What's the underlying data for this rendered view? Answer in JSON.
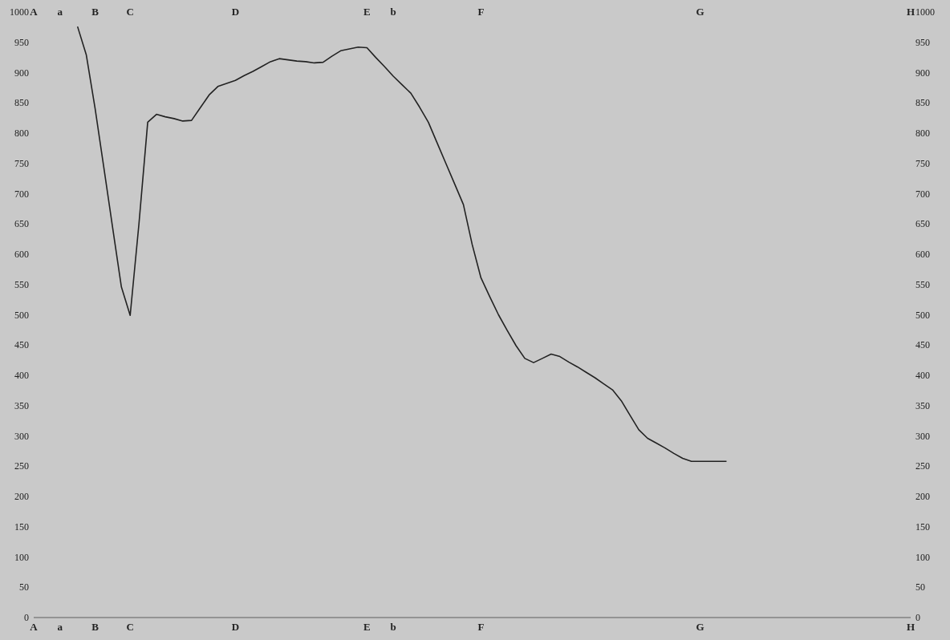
{
  "chart_data": {
    "type": "line",
    "ylim": [
      0,
      1000
    ],
    "y2lim": [
      0,
      1000
    ],
    "categories": [
      "A",
      null,
      null,
      "a",
      null,
      null,
      null,
      "B",
      null,
      null,
      null,
      "C",
      null,
      null,
      null,
      null,
      null,
      null,
      null,
      null,
      null,
      null,
      null,
      "D",
      null,
      null,
      null,
      null,
      null,
      null,
      null,
      null,
      null,
      null,
      null,
      null,
      null,
      null,
      "E",
      null,
      null,
      "b",
      null,
      null,
      null,
      null,
      null,
      null,
      null,
      null,
      null,
      "F",
      null,
      null,
      null,
      null,
      null,
      null,
      null,
      null,
      null,
      null,
      null,
      null,
      null,
      null,
      null,
      null,
      null,
      null,
      null,
      null,
      null,
      null,
      null,
      null,
      "G",
      null,
      null,
      null,
      null,
      null,
      null,
      null,
      null,
      null,
      null,
      null,
      null,
      null,
      null,
      null,
      null,
      null,
      null,
      null,
      null,
      null,
      null,
      null,
      "H"
    ],
    "yticks": [
      0,
      50,
      100,
      150,
      200,
      250,
      300,
      350,
      400,
      450,
      500,
      550,
      600,
      650,
      700,
      750,
      800,
      850,
      900,
      950,
      1000
    ],
    "y2ticks": [
      0,
      50,
      100,
      150,
      200,
      250,
      300,
      350,
      400,
      450,
      500,
      550,
      600,
      650,
      700,
      750,
      800,
      850,
      900,
      950,
      1000
    ],
    "grid": false,
    "marker": "none",
    "line_style": "solid",
    "series": [
      {
        "color": "#222222",
        "values": [
          null,
          null,
          null,
          null,
          null,
          976,
          929,
          841,
          743,
          644,
          546,
          499,
          650,
          818,
          831,
          827,
          824,
          820,
          821,
          842,
          863,
          877,
          882,
          887,
          895,
          902,
          910,
          918,
          923,
          921,
          919,
          918,
          916,
          917,
          927,
          936,
          939,
          942,
          941,
          925,
          910,
          894,
          880,
          866,
          843,
          818,
          784,
          750,
          716,
          682,
          616,
          561,
          530,
          500,
          474,
          449,
          428,
          421,
          428,
          435,
          431,
          422,
          414,
          405,
          396,
          386,
          376,
          358,
          334,
          310,
          296,
          288,
          280,
          271,
          263,
          258,
          258,
          258,
          258,
          258,
          null,
          null,
          null,
          null,
          null,
          null,
          null,
          null,
          null,
          null,
          null,
          null,
          null,
          null,
          null,
          null,
          null,
          null,
          null,
          null,
          null
        ]
      }
    ]
  }
}
